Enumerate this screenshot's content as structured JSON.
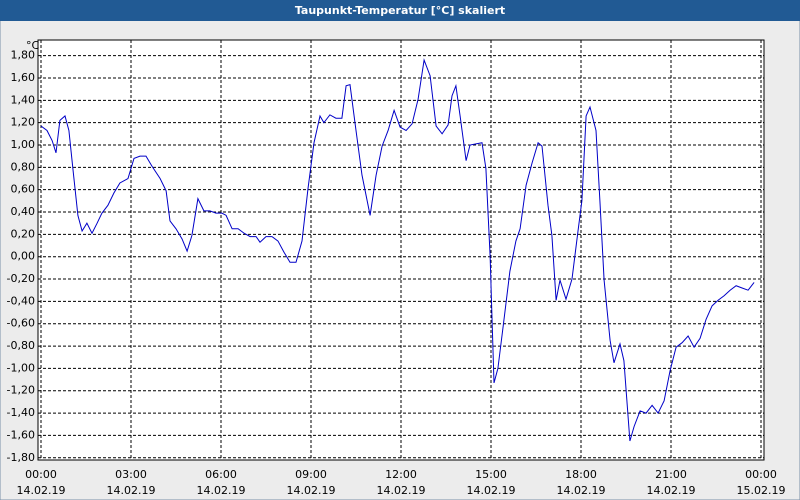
{
  "chart_data": {
    "type": "line",
    "title": "Taupunkt-Temperatur [°C] skaliert",
    "y_unit": "°C",
    "xlim": [
      0,
      24
    ],
    "ylim": [
      -1.82,
      1.94
    ],
    "grid": true,
    "xticks": [
      {
        "value": 0,
        "label": "00:00",
        "date": "14.02.19"
      },
      {
        "value": 3,
        "label": "03:00",
        "date": "14.02.19"
      },
      {
        "value": 6,
        "label": "06:00",
        "date": "14.02.19"
      },
      {
        "value": 9,
        "label": "09:00",
        "date": "14.02.19"
      },
      {
        "value": 12,
        "label": "12:00",
        "date": "14.02.19"
      },
      {
        "value": 15,
        "label": "15:00",
        "date": "14.02.19"
      },
      {
        "value": 18,
        "label": "18:00",
        "date": "14.02.19"
      },
      {
        "value": 21,
        "label": "21:00",
        "date": "14.02.19"
      },
      {
        "value": 24,
        "label": "00:00",
        "date": "15.02.19"
      }
    ],
    "yticks": [
      {
        "value": 1.8,
        "label": "1,80"
      },
      {
        "value": 1.6,
        "label": "1,60"
      },
      {
        "value": 1.4,
        "label": "1,40"
      },
      {
        "value": 1.2,
        "label": "1,20"
      },
      {
        "value": 1.0,
        "label": "1,00"
      },
      {
        "value": 0.8,
        "label": "0,80"
      },
      {
        "value": 0.6,
        "label": "0,60"
      },
      {
        "value": 0.4,
        "label": "0,40"
      },
      {
        "value": 0.2,
        "label": "0,20"
      },
      {
        "value": 0,
        "label": "0,00"
      },
      {
        "value": -0.2,
        "label": "-0,20"
      },
      {
        "value": -0.4,
        "label": "-0,40"
      },
      {
        "value": -0.6,
        "label": "-0,60"
      },
      {
        "value": -0.8,
        "label": "-0,80"
      },
      {
        "value": -1.0,
        "label": "-1,00"
      },
      {
        "value": -1.2,
        "label": "-1,20"
      },
      {
        "value": -1.4,
        "label": "-1,40"
      },
      {
        "value": -1.6,
        "label": "-1,60"
      },
      {
        "value": -1.8,
        "label": "-1,80"
      }
    ],
    "color": "#0000c8",
    "x": [
      0,
      0.2,
      0.37,
      0.5,
      0.63,
      0.8,
      0.93,
      1.07,
      1.23,
      1.37,
      1.53,
      1.7,
      1.87,
      2.03,
      2.23,
      2.43,
      2.63,
      2.9,
      3.1,
      3.3,
      3.5,
      3.7,
      3.97,
      4.17,
      4.3,
      4.5,
      4.7,
      4.87,
      5.03,
      5.23,
      5.43,
      5.63,
      5.83,
      6.03,
      6.17,
      6.37,
      6.57,
      6.77,
      6.97,
      7.17,
      7.3,
      7.5,
      7.7,
      7.9,
      8.1,
      8.3,
      8.5,
      8.7,
      8.9,
      9.1,
      9.3,
      9.43,
      9.63,
      9.83,
      10.03,
      10.17,
      10.3,
      10.5,
      10.7,
      10.97,
      11.17,
      11.37,
      11.57,
      11.77,
      11.97,
      12.17,
      12.37,
      12.57,
      12.77,
      12.97,
      13.17,
      13.37,
      13.57,
      13.7,
      13.83,
      13.97,
      14.17,
      14.3,
      14.5,
      14.7,
      14.83,
      14.97,
      15.1,
      15.23,
      15.43,
      15.63,
      15.83,
      15.97,
      16.17,
      16.37,
      16.57,
      16.7,
      16.9,
      17.03,
      17.17,
      17.3,
      17.5,
      17.7,
      17.9,
      18.03,
      18.17,
      18.3,
      18.5,
      18.63,
      18.77,
      18.97,
      19.1,
      19.3,
      19.43,
      19.63,
      19.77,
      19.97,
      20.17,
      20.37,
      20.57,
      20.77,
      20.97,
      21.17,
      21.37,
      21.57,
      21.77,
      21.97,
      22.17,
      22.37,
      22.57,
      22.77,
      22.97,
      23.17,
      23.37,
      23.57,
      23.77
    ],
    "values": [
      1.17,
      1.13,
      1.04,
      0.93,
      1.22,
      1.26,
      1.13,
      0.77,
      0.37,
      0.23,
      0.3,
      0.21,
      0.3,
      0.39,
      0.46,
      0.57,
      0.66,
      0.7,
      0.88,
      0.9,
      0.9,
      0.81,
      0.7,
      0.59,
      0.32,
      0.25,
      0.16,
      0.05,
      0.19,
      0.52,
      0.41,
      0.41,
      0.39,
      0.39,
      0.37,
      0.25,
      0.25,
      0.21,
      0.18,
      0.18,
      0.13,
      0.18,
      0.18,
      0.14,
      0.04,
      -0.05,
      -0.05,
      0.14,
      0.61,
      1.02,
      1.26,
      1.2,
      1.27,
      1.24,
      1.24,
      1.53,
      1.54,
      1.13,
      0.73,
      0.37,
      0.73,
      0.99,
      1.13,
      1.31,
      1.16,
      1.13,
      1.19,
      1.41,
      1.76,
      1.62,
      1.17,
      1.1,
      1.18,
      1.44,
      1.53,
      1.26,
      0.86,
      1.0,
      1.01,
      1.02,
      0.79,
      0.01,
      -1.13,
      -1.0,
      -0.57,
      -0.13,
      0.14,
      0.25,
      0.64,
      0.84,
      1.02,
      0.99,
      0.46,
      0.19,
      -0.39,
      -0.21,
      -0.38,
      -0.2,
      0.23,
      0.5,
      1.26,
      1.34,
      1.13,
      0.5,
      -0.21,
      -0.75,
      -0.95,
      -0.78,
      -0.93,
      -1.65,
      -1.52,
      -1.38,
      -1.4,
      -1.33,
      -1.4,
      -1.29,
      -1.02,
      -0.81,
      -0.77,
      -0.71,
      -0.81,
      -0.73,
      -0.56,
      -0.44,
      -0.39,
      -0.35,
      -0.3,
      -0.26,
      -0.28,
      -0.3,
      -0.23
    ]
  }
}
